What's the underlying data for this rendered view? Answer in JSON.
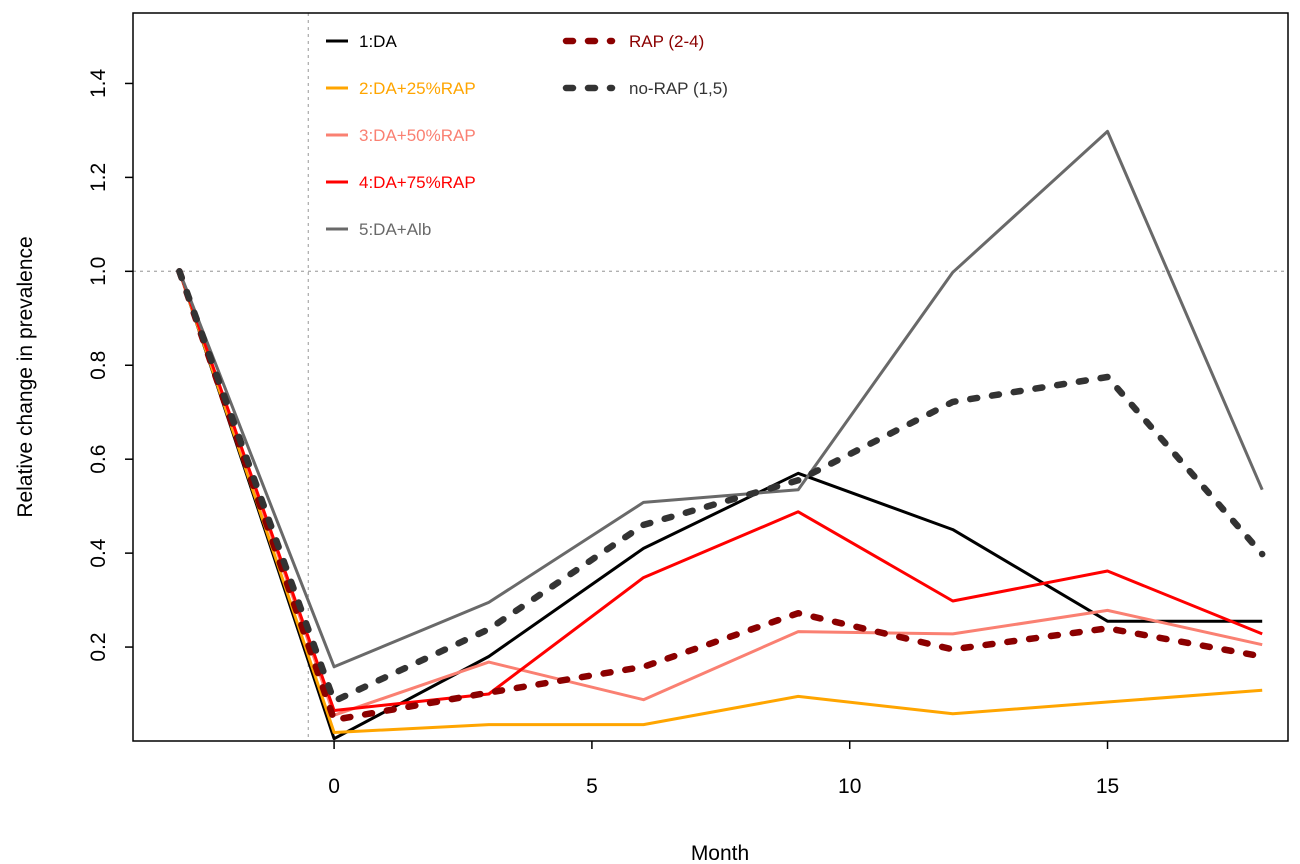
{
  "chart_data": {
    "type": "line",
    "title": "",
    "xlabel": "Month",
    "ylabel": "Relative change in prevalence",
    "xlim": [
      -3.9,
      18.5
    ],
    "ylim": [
      0,
      1.55
    ],
    "xticks": [
      0,
      5,
      10,
      15
    ],
    "yticks": [
      0.2,
      0.4,
      0.6,
      0.8,
      1.0,
      1.2,
      1.4
    ],
    "ytick_labels": [
      "0.2",
      "0.4",
      "0.6",
      "0.8",
      "1.0",
      "1.2",
      "1.4"
    ],
    "reference_lines": {
      "horizontal_y": 1.0,
      "vertical_x": -0.5
    },
    "grid": false,
    "legend_position": "top",
    "series": [
      {
        "name": "1:DA",
        "color": "#000000",
        "style": "solid",
        "x": [
          -3,
          0,
          3,
          6,
          9,
          12,
          15,
          18
        ],
        "values": [
          1.0,
          0.005,
          0.18,
          0.41,
          0.57,
          0.45,
          0.255,
          0.255
        ]
      },
      {
        "name": "2:DA+25%RAP",
        "color": "#FFA500",
        "style": "solid",
        "x": [
          -3,
          0,
          3,
          6,
          9,
          12,
          15,
          18
        ],
        "values": [
          1.0,
          0.018,
          0.035,
          0.035,
          0.095,
          0.058,
          0.083,
          0.108
        ]
      },
      {
        "name": "3:DA+50%RAP",
        "color": "#FA8072",
        "style": "solid",
        "x": [
          -3,
          0,
          3,
          6,
          9,
          12,
          15,
          18
        ],
        "values": [
          1.0,
          0.055,
          0.168,
          0.088,
          0.233,
          0.228,
          0.278,
          0.205
        ]
      },
      {
        "name": "4:DA+75%RAP",
        "color": "#FF0000",
        "style": "solid",
        "x": [
          -3,
          0,
          3,
          6,
          9,
          12,
          15,
          18
        ],
        "values": [
          1.0,
          0.065,
          0.1,
          0.348,
          0.488,
          0.298,
          0.362,
          0.228
        ]
      },
      {
        "name": "5:DA+Alb",
        "color": "#696969",
        "style": "solid",
        "x": [
          -3,
          0,
          3,
          6,
          9,
          12,
          15,
          18
        ],
        "values": [
          1.0,
          0.158,
          0.295,
          0.508,
          0.535,
          0.998,
          1.298,
          0.535
        ]
      },
      {
        "name": "RAP (2-4)",
        "color": "#8B0000",
        "style": "dashed",
        "x": [
          -3,
          0,
          3,
          6,
          9,
          12,
          15,
          18
        ],
        "values": [
          1.0,
          0.045,
          0.103,
          0.158,
          0.272,
          0.195,
          0.24,
          0.18
        ]
      },
      {
        "name": "no-RAP (1,5)",
        "color": "#333333",
        "style": "dashed",
        "x": [
          -3,
          0,
          3,
          6,
          9,
          12,
          15,
          18
        ],
        "values": [
          1.0,
          0.085,
          0.238,
          0.46,
          0.555,
          0.722,
          0.775,
          0.398
        ]
      }
    ]
  }
}
